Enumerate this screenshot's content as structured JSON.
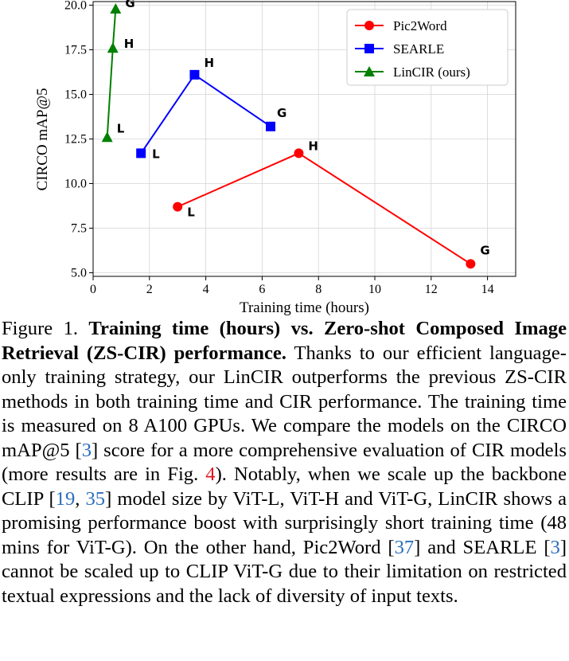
{
  "chart_data": {
    "type": "line",
    "xlabel": "Training time (hours)",
    "ylabel": "CIRCO mAP@5",
    "xlim": [
      0,
      15
    ],
    "ylim": [
      4.8,
      20.2
    ],
    "xticks": [
      0,
      2,
      4,
      6,
      8,
      10,
      12,
      14
    ],
    "yticks": [
      5.0,
      7.5,
      10.0,
      12.5,
      15.0,
      17.5,
      20.0
    ],
    "xtick_labels": [
      "0",
      "2",
      "4",
      "6",
      "8",
      "10",
      "12",
      "14"
    ],
    "ytick_labels": [
      "5.0",
      "7.5",
      "10.0",
      "12.5",
      "15.0",
      "17.5",
      "20.0"
    ],
    "grid": true,
    "legend_position": "top-right",
    "series": [
      {
        "name": "Pic2Word",
        "color": "#ff0000",
        "marker": "circle",
        "points": [
          {
            "x": 3.0,
            "y": 8.7,
            "label": "L"
          },
          {
            "x": 7.3,
            "y": 11.7,
            "label": "H"
          },
          {
            "x": 13.4,
            "y": 5.5,
            "label": "G"
          }
        ]
      },
      {
        "name": "SEARLE",
        "color": "#0000ff",
        "marker": "square",
        "points": [
          {
            "x": 1.7,
            "y": 11.7,
            "label": "L"
          },
          {
            "x": 3.6,
            "y": 16.1,
            "label": "H"
          },
          {
            "x": 6.3,
            "y": 13.2,
            "label": "G"
          }
        ]
      },
      {
        "name": "LinCIR (ours)",
        "color": "#008000",
        "marker": "triangle",
        "points": [
          {
            "x": 0.5,
            "y": 12.6,
            "label": "L"
          },
          {
            "x": 0.7,
            "y": 17.6,
            "label": "H"
          },
          {
            "x": 0.8,
            "y": 19.8,
            "label": "G"
          }
        ]
      }
    ]
  },
  "caption": {
    "figure_label": "Figure 1.",
    "title": "Training time (hours) vs. Zero-shot Composed Image Retrieval (ZS-CIR) performance.",
    "text1": "Thanks to our efficient language-only training strategy, our LinCIR outperforms the previous ZS-CIR methods in both training time and CIR performance. The training time is measured on 8 A100 GPUs. We compare the models on the CIRCO mAP@5 [",
    "ref3a": "3",
    "text2": "] score for a more comprehensive evaluation of CIR models (more results are in Fig.",
    "ref4": "4",
    "text3": "). Notably, when we scale up the backbone CLIP [",
    "ref19": "19",
    "sep": ",",
    "ref35": "35",
    "text4": "] model size by ViT-L, ViT-H and ViT-G, LinCIR shows a promising performance boost with surprisingly short training time (48 mins for ViT-G). On the other hand, Pic2Word [",
    "ref37": "37",
    "text5": "] and SEARLE [",
    "ref3b": "3",
    "text6": "] cannot be scaled up to CLIP ViT-G due to their limitation on restricted textual expressions and the lack of diversity of input texts."
  }
}
